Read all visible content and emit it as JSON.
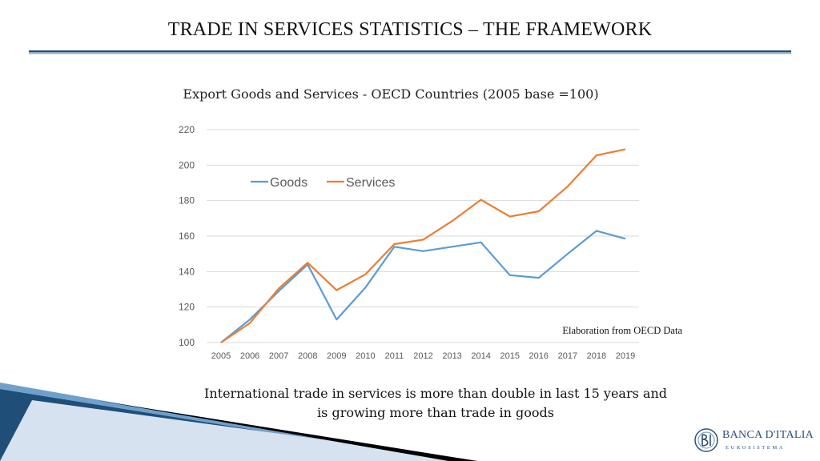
{
  "slide": {
    "title": "TRADE IN SERVICES STATISTICS – THE FRAMEWORK",
    "note": "Elaboration from OECD Data",
    "caption": "International trade in services is more than double in last 15 years and is growing more than trade in goods"
  },
  "logo": {
    "name": "BANCA D'ITALIA",
    "sub": "EUROSISTEMA"
  },
  "colors": {
    "goods": "#5b9bd5",
    "services": "#ed7d31",
    "grid": "#d9d9d9",
    "axis_text": "#595959"
  },
  "chart_data": {
    "type": "line",
    "title": "Export Goods and Services - OECD Countries (2005 base =100)",
    "xlabel": "",
    "ylabel": "",
    "categories": [
      "2005",
      "2006",
      "2007",
      "2008",
      "2009",
      "2010",
      "2011",
      "2012",
      "2013",
      "2014",
      "2015",
      "2016",
      "2017",
      "2018",
      "2019"
    ],
    "ylim": [
      100,
      220
    ],
    "yticks": [
      100,
      120,
      140,
      160,
      180,
      200,
      220
    ],
    "grid": true,
    "legend": "top-left",
    "series": [
      {
        "name": "Goods",
        "values": [
          100,
          113,
          129,
          144,
          113,
          131,
          154,
          151.5,
          154,
          156.5,
          138,
          136.5,
          150,
          163,
          158.5
        ]
      },
      {
        "name": "Services",
        "values": [
          100,
          111,
          130.5,
          145,
          129.5,
          138.5,
          155.5,
          158,
          168.5,
          180.5,
          171,
          174,
          188,
          205.5,
          209
        ]
      }
    ]
  }
}
